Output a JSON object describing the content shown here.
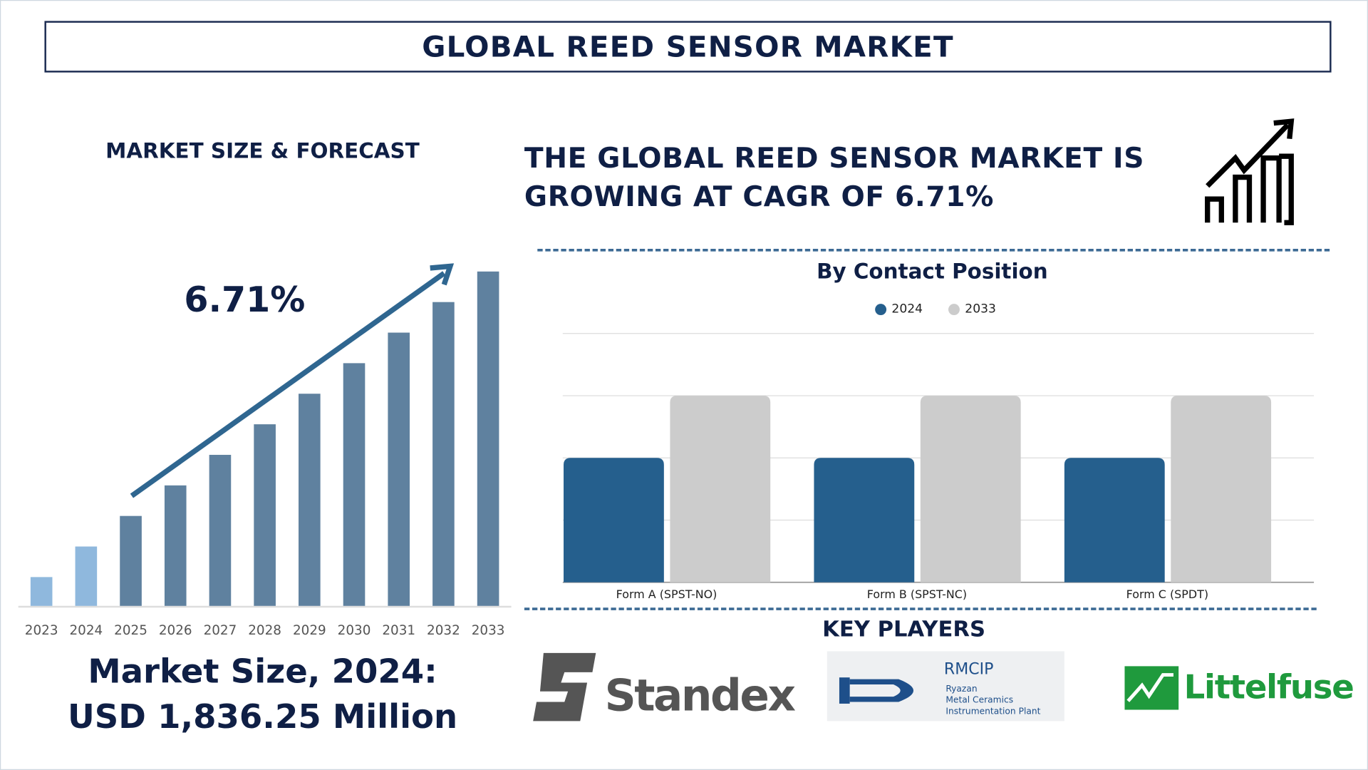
{
  "header": {
    "title": "GLOBAL REED SENSOR MARKET"
  },
  "left": {
    "section_title": "MARKET SIZE & FORECAST",
    "cagr_label": "6.71%",
    "market_size_line1": "Market Size, 2024:",
    "market_size_line2": "USD 1,836.25 Million"
  },
  "headline": {
    "line1": "THE GLOBAL REED SENSOR MARKET IS",
    "line2": "GROWING AT CAGR OF 6.71%",
    "icon": "growth-chart-icon"
  },
  "key_players": {
    "title": "KEY PLAYERS",
    "logos": [
      {
        "name": "Standex"
      },
      {
        "name": "RMCIP",
        "subtitle": [
          "Ryazan",
          "Metal Ceramics",
          "Instrumentation Plant"
        ]
      },
      {
        "name": "Littelfuse"
      }
    ]
  },
  "colors": {
    "navy": "#0f1f45",
    "bar_2024": "#255f8d",
    "bar_2033": "#cccccc",
    "forecast_bar": "#5f819f",
    "historic_bar": "#8fb8dd",
    "arrow": "#2f6690"
  },
  "chart_data": [
    {
      "type": "bar",
      "categories": [
        "2023",
        "2024",
        "2025",
        "2026",
        "2027",
        "2028",
        "2029",
        "2030",
        "2031",
        "2032",
        "2033"
      ],
      "values": [
        1,
        2,
        3,
        4,
        5,
        6,
        7,
        8,
        9,
        10,
        11
      ],
      "title": "",
      "xlabel": "",
      "ylabel": "",
      "grid": false,
      "annotation": "6.71%"
    },
    {
      "type": "bar",
      "title": "By Contact Position",
      "categories": [
        "Form A (SPST-NO)",
        "Form B (SPST-NC)",
        "Form C (SPDT)"
      ],
      "series": [
        {
          "name": "2024",
          "values": [
            2,
            2,
            2
          ]
        },
        {
          "name": "2033",
          "values": [
            3,
            3,
            3
          ]
        }
      ],
      "ylim": [
        0,
        4
      ],
      "grid": true,
      "legend": "top-center"
    }
  ]
}
